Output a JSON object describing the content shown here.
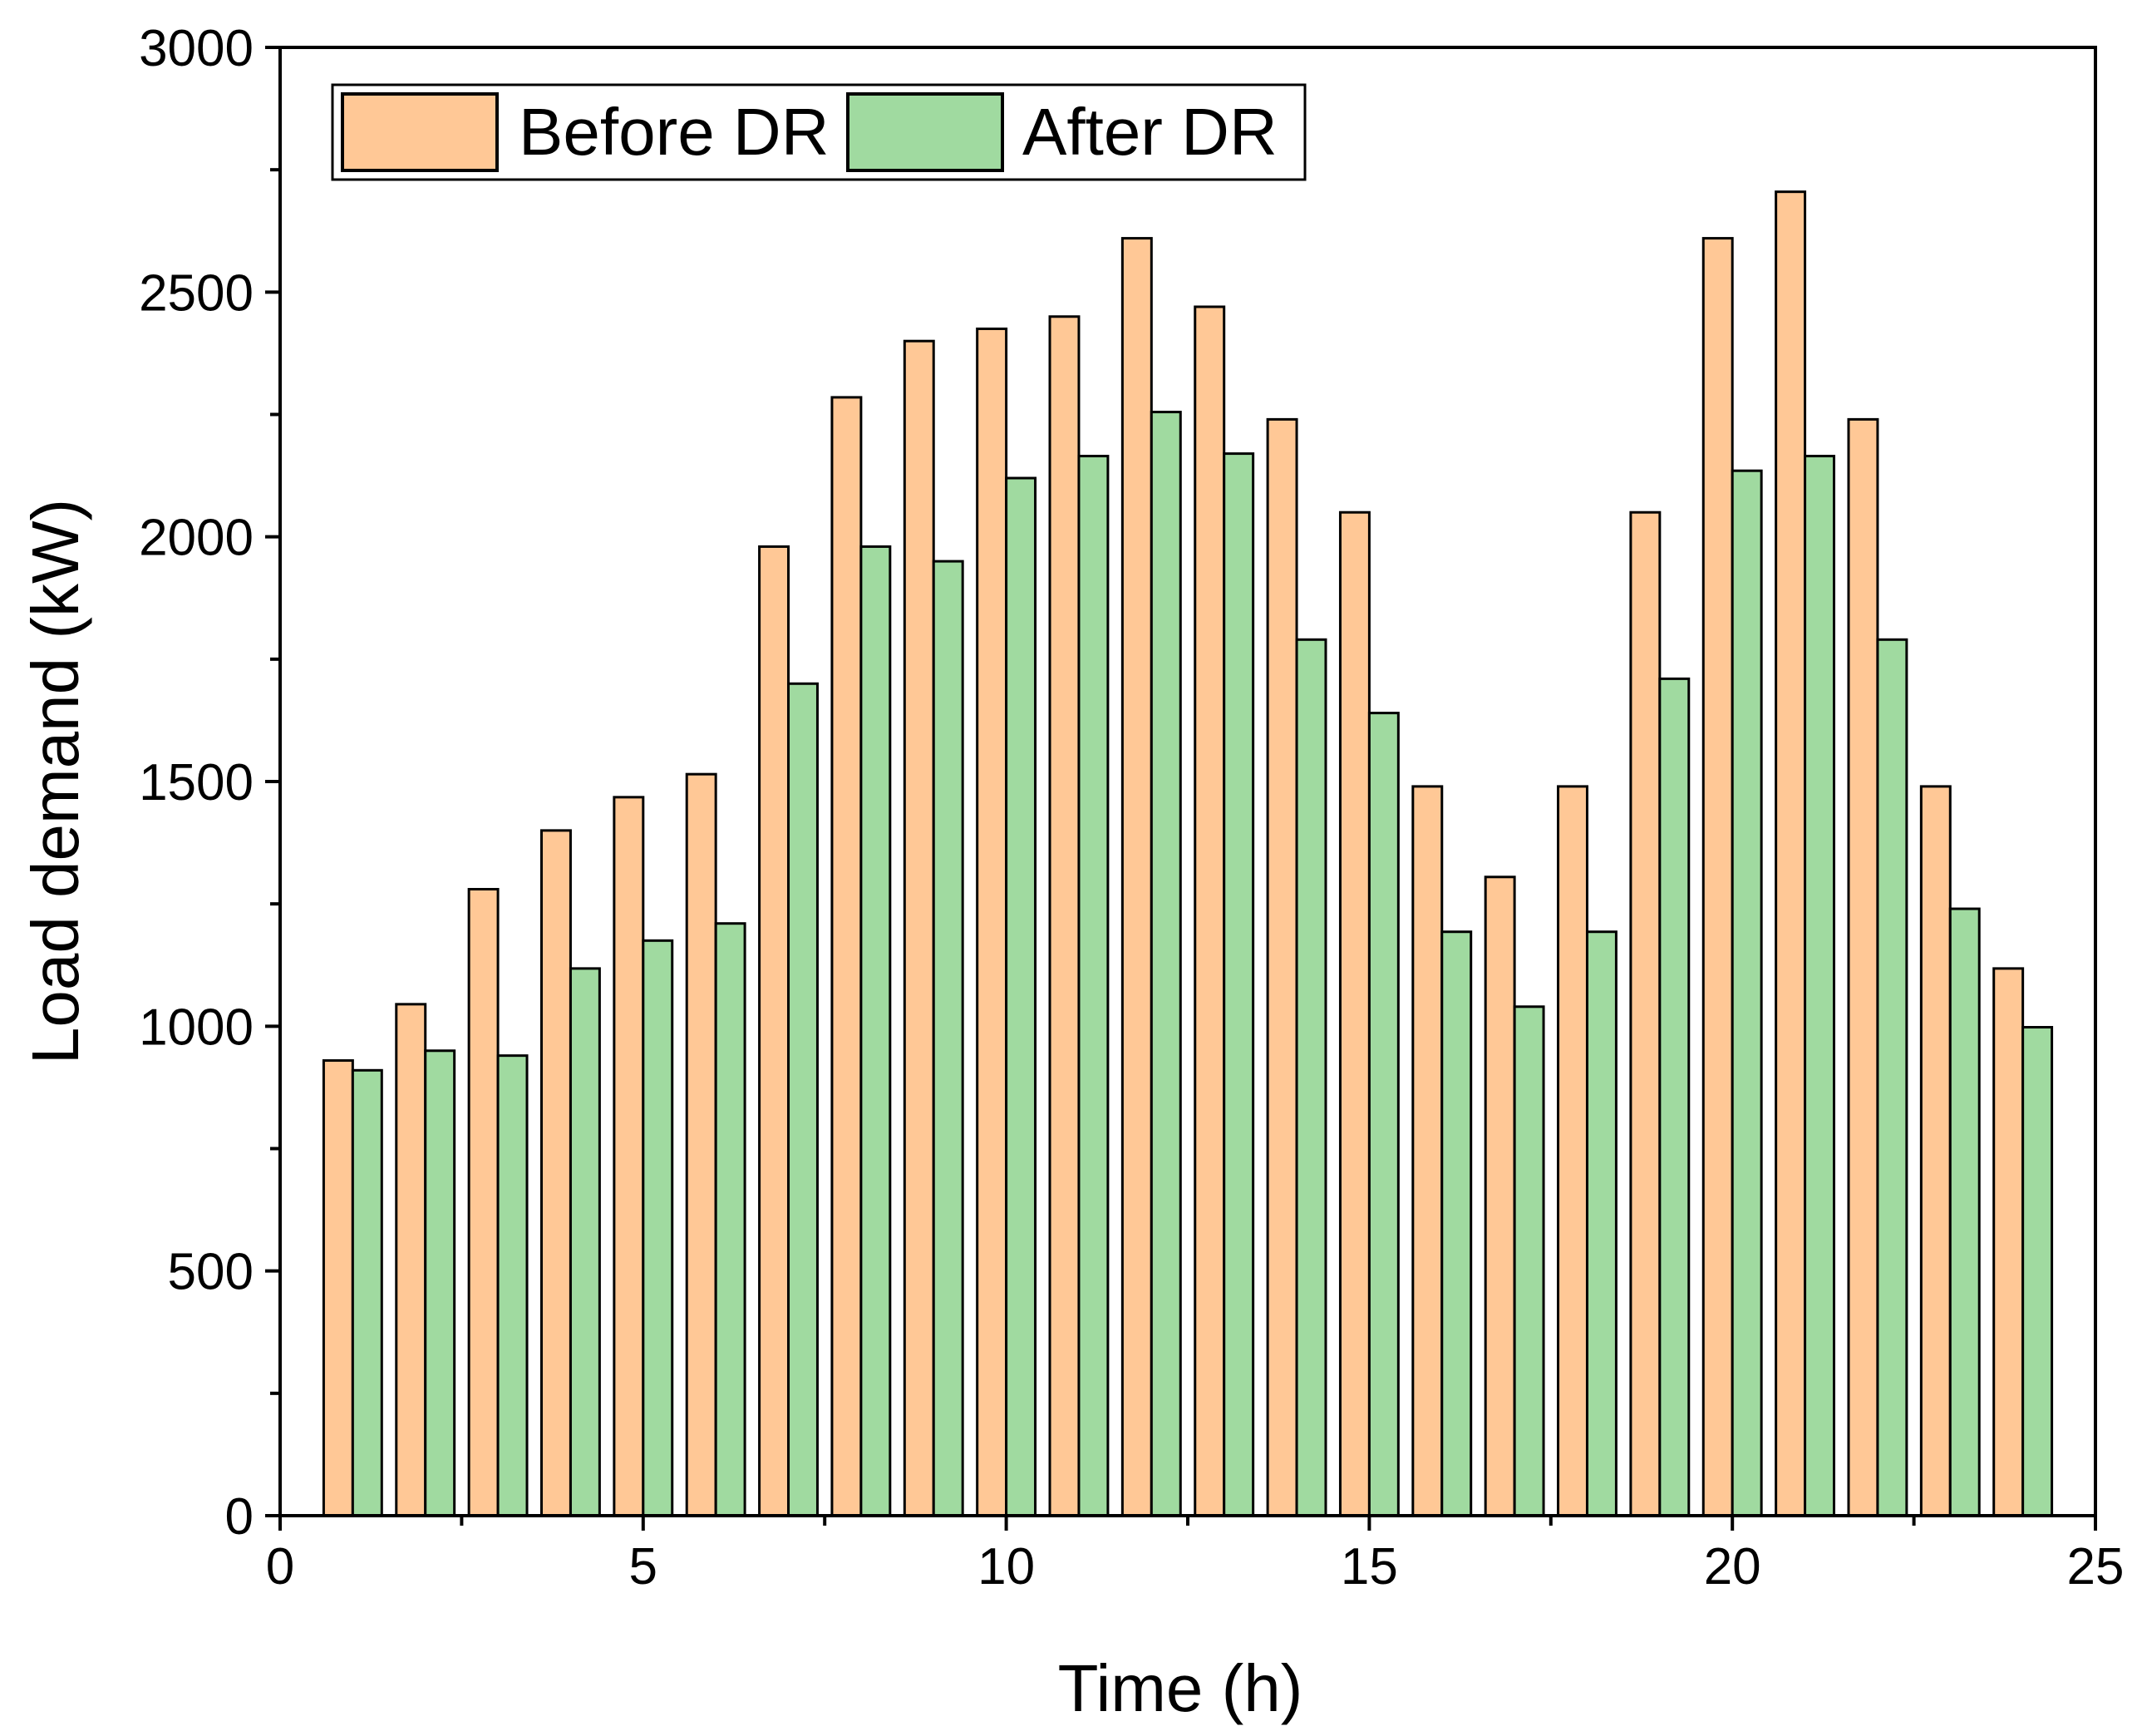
{
  "chart_data": {
    "type": "bar",
    "title": "",
    "xlabel": "Time (h)",
    "ylabel": "Load demand (kW)",
    "xlim": [
      0,
      25
    ],
    "ylim": [
      0,
      3000
    ],
    "x_ticks": [
      0,
      5,
      10,
      15,
      20,
      25
    ],
    "y_ticks": [
      0,
      500,
      1000,
      1500,
      2000,
      2500,
      3000
    ],
    "legend_position": "top-left",
    "grid": false,
    "categories": [
      1,
      2,
      3,
      4,
      5,
      6,
      7,
      8,
      9,
      10,
      11,
      12,
      13,
      14,
      15,
      16,
      17,
      18,
      19,
      20,
      21,
      22,
      23,
      24
    ],
    "series": [
      {
        "name": "Before DR",
        "color": "#FFC896",
        "values": [
          930,
          1045,
          1280,
          1400,
          1468,
          1515,
          1980,
          2285,
          2400,
          2425,
          2450,
          2610,
          2470,
          2240,
          2050,
          1490,
          1305,
          1490,
          2050,
          2610,
          2705,
          2240,
          1490,
          1118
        ]
      },
      {
        "name": "After DR",
        "color": "#A0DAA0",
        "values": [
          910,
          950,
          940,
          1118,
          1175,
          1210,
          1700,
          1980,
          1950,
          2120,
          2165,
          2255,
          2170,
          1790,
          1640,
          1193,
          1040,
          1193,
          1710,
          2135,
          2165,
          1790,
          1240,
          998
        ]
      }
    ]
  }
}
